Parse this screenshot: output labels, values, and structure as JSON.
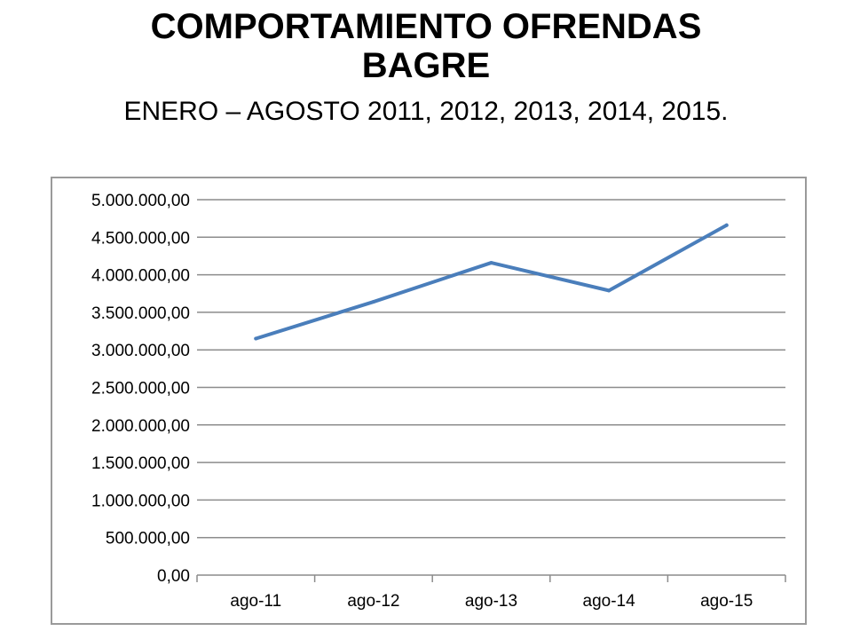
{
  "slide": {
    "title_line1": "COMPORTAMIENTO OFRENDAS",
    "title_line2": "BAGRE",
    "subtitle": "ENERO – AGOSTO 2011, 2012, 2013, 2014, 2015."
  },
  "colors": {
    "series_line": "#4a7ebb",
    "grid": "#8c8c8c",
    "frame_border": "#9a9a9a"
  },
  "chart_data": {
    "type": "line",
    "categories": [
      "ago-11",
      "ago-12",
      "ago-13",
      "ago-14",
      "ago-15"
    ],
    "series": [
      {
        "values": [
          3150000,
          3640000,
          4160000,
          3790000,
          4660000
        ]
      }
    ],
    "ylim": [
      0,
      5000000
    ],
    "yticks": [
      0,
      500000,
      1000000,
      1500000,
      2000000,
      2500000,
      3000000,
      3500000,
      4000000,
      4500000,
      5000000
    ],
    "ytick_labels": [
      "0,00",
      "500.000,00",
      "1.000.000,00",
      "1.500.000,00",
      "2.000.000,00",
      "2.500.000,00",
      "3.000.000,00",
      "3.500.000,00",
      "4.000.000,00",
      "4.500.000,00",
      "5.000.000,00"
    ],
    "grid": true,
    "legend": "none"
  }
}
